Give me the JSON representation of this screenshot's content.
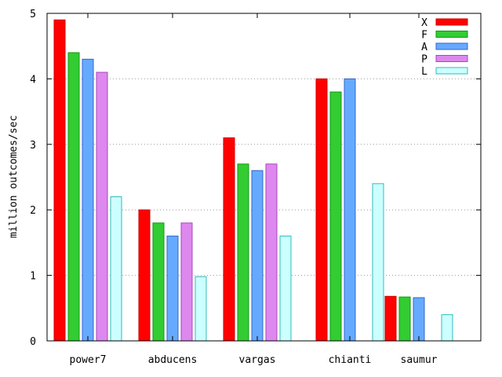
{
  "chart_data": {
    "type": "bar",
    "title": "",
    "xlabel": "",
    "ylabel": "million outcomes/sec",
    "ylim": [
      0,
      5
    ],
    "yticks": [
      "0",
      "1",
      "2",
      "3",
      "4",
      "5"
    ],
    "grid": "horizontal dotted",
    "legend_position": "top-right",
    "categories": [
      "power7",
      "abducens",
      "vargas",
      "chianti",
      "saumur"
    ],
    "series": [
      {
        "name": "X",
        "color": "#ff0000",
        "values": [
          4.9,
          2.0,
          3.1,
          4.0,
          0.68
        ]
      },
      {
        "name": "F",
        "color": "#33cc33",
        "values": [
          4.4,
          1.8,
          2.7,
          3.8,
          0.67
        ]
      },
      {
        "name": "A",
        "color": "#66aaff",
        "values": [
          4.3,
          1.6,
          2.6,
          4.0,
          0.66
        ]
      },
      {
        "name": "P",
        "color": "#dd88ee",
        "values": [
          4.1,
          1.8,
          2.7,
          null,
          null
        ]
      },
      {
        "name": "L",
        "color": "#ccffff",
        "values": [
          2.2,
          0.98,
          1.6,
          2.4,
          0.4
        ]
      }
    ]
  }
}
